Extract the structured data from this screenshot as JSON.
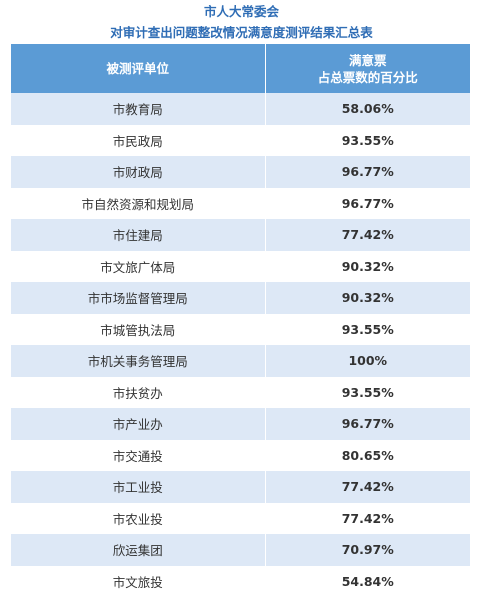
{
  "title": {
    "line1": "市人大常委会",
    "line2": "对审计查出问题整改情况满意度测评结果汇总表"
  },
  "table": {
    "headers": {
      "unit": "被测评单位",
      "satisfaction_line1": "满意票",
      "satisfaction_line2": "占总票数的百分比"
    },
    "rows": [
      {
        "unit": "市教育局",
        "percent": "58.06%"
      },
      {
        "unit": "市民政局",
        "percent": "93.55%"
      },
      {
        "unit": "市财政局",
        "percent": "96.77%"
      },
      {
        "unit": "市自然资源和规划局",
        "percent": "96.77%"
      },
      {
        "unit": "市住建局",
        "percent": "77.42%"
      },
      {
        "unit": "市文旅广体局",
        "percent": "90.32%"
      },
      {
        "unit": "市市场监督管理局",
        "percent": "90.32%"
      },
      {
        "unit": "市城管执法局",
        "percent": "93.55%"
      },
      {
        "unit": "市机关事务管理局",
        "percent": "100%"
      },
      {
        "unit": "市扶贫办",
        "percent": "93.55%"
      },
      {
        "unit": "市产业办",
        "percent": "96.77%"
      },
      {
        "unit": "市交通投",
        "percent": "80.65%"
      },
      {
        "unit": "市工业投",
        "percent": "77.42%"
      },
      {
        "unit": "市农业投",
        "percent": "77.42%"
      },
      {
        "unit": "欣运集团",
        "percent": "70.97%"
      },
      {
        "unit": "市文旅投",
        "percent": "54.84%"
      }
    ]
  },
  "colors": {
    "title": "#2f6db5",
    "header_bg": "#5b9bd5",
    "stripe_bg": "#dde8f6"
  }
}
